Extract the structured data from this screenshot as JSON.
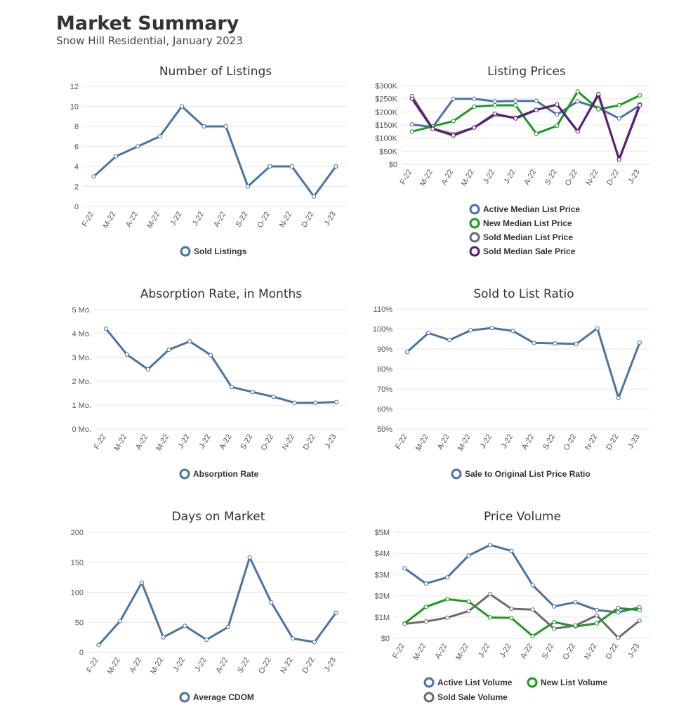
{
  "header": {
    "title": "Market Summary",
    "subtitle": "Snow Hill Residential, January 2023"
  },
  "colors": {
    "blue": "#4a72a6",
    "green": "#1a9a1a",
    "gray": "#6b6b6b",
    "purple": "#5a1a78"
  },
  "chart_data": [
    {
      "id": "listings",
      "type": "line",
      "title": "Number of Listings",
      "categories": [
        "F-22",
        "M-22",
        "A-22",
        "M-22",
        "J-22",
        "J-22",
        "A-22",
        "S-22",
        "O-22",
        "N-22",
        "D-22",
        "J-23"
      ],
      "ylim": [
        0,
        12
      ],
      "yticks": [
        0,
        2,
        4,
        6,
        8,
        10,
        12
      ],
      "ytick_labels": [
        "0",
        "2",
        "4",
        "6",
        "8",
        "10",
        "12"
      ],
      "series": [
        {
          "name": "Sold Listings",
          "color": "#4a72a6",
          "values": [
            3,
            5,
            6,
            7,
            10,
            8,
            8,
            2,
            4,
            4,
            1,
            4
          ]
        }
      ]
    },
    {
      "id": "prices",
      "type": "line",
      "title": "Listing Prices",
      "categories": [
        "F-22",
        "M-22",
        "A-22",
        "M-22",
        "J-22",
        "J-22",
        "A-22",
        "S-22",
        "O-22",
        "N-22",
        "D-22",
        "J-23"
      ],
      "ylim": [
        0,
        300000
      ],
      "yticks": [
        0,
        50000,
        100000,
        150000,
        200000,
        250000,
        300000
      ],
      "ytick_labels": [
        "$0",
        "$50K",
        "$100K",
        "$150K",
        "$200K",
        "$250K",
        "$300K"
      ],
      "series": [
        {
          "name": "Active Median List Price",
          "color": "#4a72a6",
          "values": [
            152000,
            142000,
            250000,
            250000,
            240000,
            242000,
            242000,
            190000,
            240000,
            215000,
            175000,
            225000
          ]
        },
        {
          "name": "New Median List Price",
          "color": "#1a9a1a",
          "values": [
            125000,
            145000,
            165000,
            220000,
            225000,
            225000,
            117000,
            147000,
            278000,
            210000,
            225000,
            263000
          ]
        },
        {
          "name": "Sold Median List Price",
          "color": "#6b6b6b",
          "values": [
            260000,
            137000,
            115000,
            140000,
            188000,
            178000,
            208000,
            228000,
            127000,
            263000,
            20000,
            230000
          ]
        },
        {
          "name": "Sold Median Sale Price",
          "color": "#5a1a78",
          "values": [
            250000,
            135000,
            110000,
            140000,
            193000,
            175000,
            207000,
            228000,
            125000,
            268000,
            18000,
            225000
          ]
        }
      ]
    },
    {
      "id": "absorption",
      "type": "line",
      "title": "Absorption Rate, in Months",
      "categories": [
        "F-22",
        "M-22",
        "A-22",
        "M-22",
        "J-22",
        "J-22",
        "A-22",
        "S-22",
        "O-22",
        "N-22",
        "D-22",
        "J-23"
      ],
      "ylim": [
        0,
        5
      ],
      "yticks": [
        0,
        1,
        2,
        3,
        4,
        5
      ],
      "ytick_labels": [
        "0 Mo.",
        "1 Mo.",
        "2 Mo.",
        "3 Mo.",
        "4 Mo.",
        "5 Mo."
      ],
      "series": [
        {
          "name": "Absorption Rate",
          "color": "#4a72a6",
          "values": [
            4.2,
            3.12,
            2.5,
            3.32,
            3.67,
            3.1,
            1.76,
            1.55,
            1.35,
            1.1,
            1.1,
            1.13
          ]
        }
      ]
    },
    {
      "id": "ratio",
      "type": "line",
      "title": "Sold to List Ratio",
      "categories": [
        "F-22",
        "M-22",
        "A-22",
        "M-22",
        "J-22",
        "J-22",
        "A-22",
        "S-22",
        "O-22",
        "N-22",
        "D-22",
        "J-23"
      ],
      "ylim": [
        50,
        110
      ],
      "yticks": [
        50,
        60,
        70,
        80,
        90,
        100,
        110
      ],
      "ytick_labels": [
        "50%",
        "60%",
        "70%",
        "80%",
        "90%",
        "100%",
        "110%"
      ],
      "series": [
        {
          "name": "Sale to Original List Price Ratio",
          "color": "#4a72a6",
          "values": [
            88.5,
            98,
            94.5,
            99.3,
            100.5,
            99,
            93,
            92.8,
            92.5,
            100.3,
            65.5,
            93.2
          ]
        }
      ]
    },
    {
      "id": "dom",
      "type": "line",
      "title": "Days on Market",
      "categories": [
        "F-22",
        "M-22",
        "A-22",
        "M-22",
        "J-22",
        "J-22",
        "A-22",
        "S-22",
        "O-22",
        "N-22",
        "D-22",
        "J-23"
      ],
      "ylim": [
        0,
        200
      ],
      "yticks": [
        0,
        50,
        100,
        150,
        200
      ],
      "ytick_labels": [
        "0",
        "50",
        "100",
        "150",
        "200"
      ],
      "series": [
        {
          "name": "Average CDOM",
          "color": "#4a72a6",
          "values": [
            12,
            52,
            116,
            25,
            44,
            21,
            42,
            158,
            83,
            23,
            17,
            66
          ]
        }
      ]
    },
    {
      "id": "volume",
      "type": "line",
      "title": "Price Volume",
      "categories": [
        "F-22",
        "M-22",
        "A-22",
        "M-22",
        "J-22",
        "J-22",
        "A-22",
        "S-22",
        "O-22",
        "N-22",
        "D-22",
        "J-23"
      ],
      "ylim": [
        0,
        5000000
      ],
      "yticks": [
        0,
        1000000,
        2000000,
        3000000,
        4000000,
        5000000
      ],
      "ytick_labels": [
        "$0",
        "$1M",
        "$2M",
        "$3M",
        "$4M",
        "$5M"
      ],
      "series": [
        {
          "name": "Active List Volume",
          "color": "#4a72a6",
          "values": [
            3300000,
            2580000,
            2870000,
            3900000,
            4400000,
            4120000,
            2500000,
            1500000,
            1700000,
            1330000,
            1220000,
            1460000
          ]
        },
        {
          "name": "New List Volume",
          "color": "#1a9a1a",
          "values": [
            700000,
            1480000,
            1840000,
            1730000,
            980000,
            960000,
            100000,
            760000,
            560000,
            700000,
            1420000,
            1330000
          ]
        },
        {
          "name": "Sold Sale Volume",
          "color": "#6b6b6b",
          "values": [
            680000,
            790000,
            970000,
            1280000,
            2080000,
            1390000,
            1350000,
            450000,
            600000,
            1080000,
            20000,
            830000
          ]
        }
      ]
    }
  ]
}
